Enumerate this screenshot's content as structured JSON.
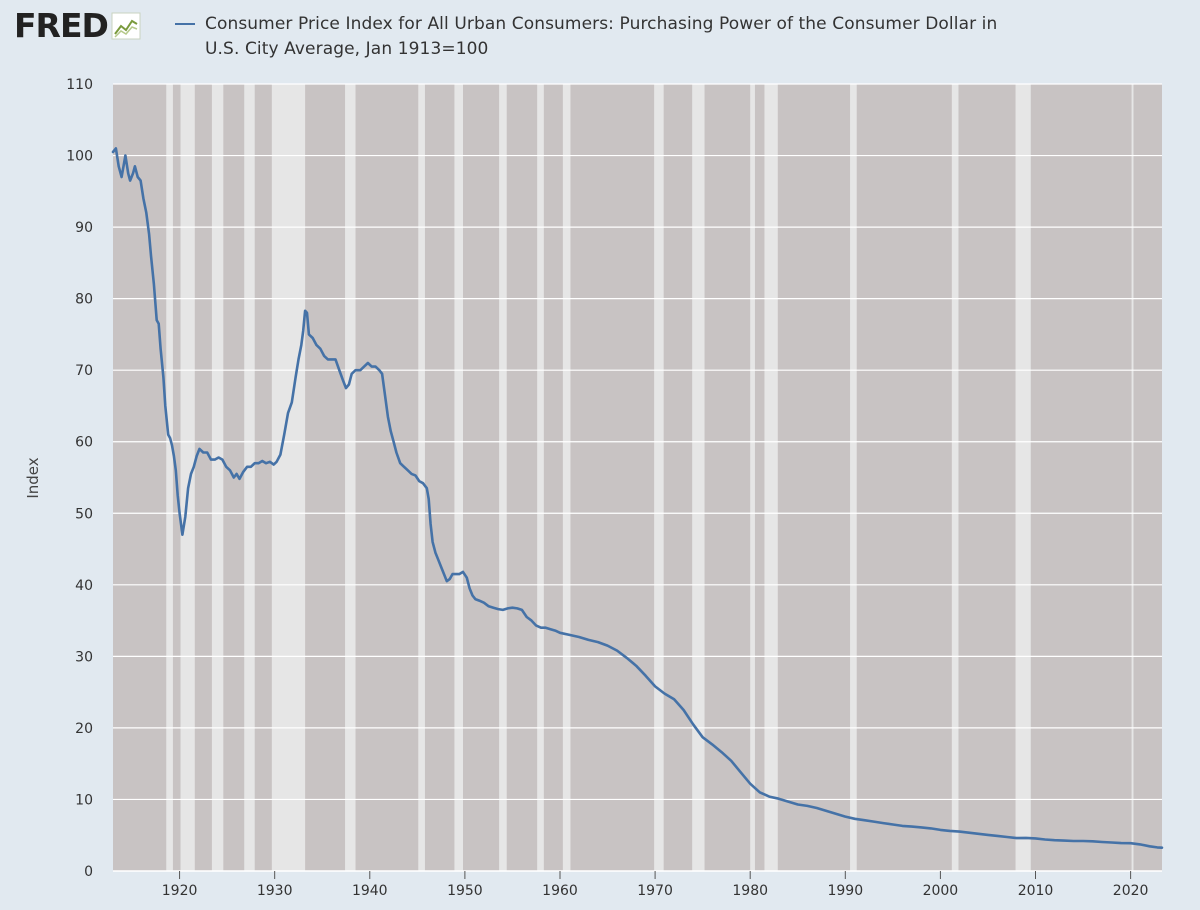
{
  "header": {
    "logo_text": "FRED",
    "logo_icon": "line-chart-icon",
    "legend_label": "Consumer Price Index for All Urban Consumers: Purchasing Power of the Consumer Dollar in U.S. City Average, Jan 1913=100"
  },
  "colors": {
    "background": "#e1e9f0",
    "plot_background": "#c8c3c3",
    "recession_band": "#e6e6e6",
    "series_line": "#4572a7",
    "gridline": "#ffffff"
  },
  "chart_data": {
    "type": "line",
    "title": "",
    "xlabel": "",
    "ylabel": "Index",
    "xlim": [
      1913.0,
      2023.3
    ],
    "ylim": [
      0,
      110
    ],
    "xticks": [
      1920,
      1930,
      1940,
      1950,
      1960,
      1970,
      1980,
      1990,
      2000,
      2010,
      2020
    ],
    "yticks": [
      0,
      10,
      20,
      30,
      40,
      50,
      60,
      70,
      80,
      90,
      100,
      110
    ],
    "grid": "horizontal",
    "legend_position": "top",
    "recession_shading": true,
    "unshaded_periods": [
      [
        1918.6,
        1919.3
      ],
      [
        1920.1,
        1921.6
      ],
      [
        1923.4,
        1924.6
      ],
      [
        1926.8,
        1927.9
      ],
      [
        1929.7,
        1933.2
      ],
      [
        1937.4,
        1938.5
      ],
      [
        1945.1,
        1945.8
      ],
      [
        1948.9,
        1949.8
      ],
      [
        1953.6,
        1954.4
      ],
      [
        1957.6,
        1958.3
      ],
      [
        1960.3,
        1961.1
      ],
      [
        1969.9,
        1970.9
      ],
      [
        1973.9,
        1975.2
      ],
      [
        1980.0,
        1980.5
      ],
      [
        1981.5,
        1982.9
      ],
      [
        1990.5,
        1991.2
      ],
      [
        2001.2,
        2001.9
      ],
      [
        2007.9,
        2009.5
      ],
      [
        2020.1,
        2020.3
      ]
    ],
    "series": [
      {
        "values": [
          [
            1913.0,
            100.5
          ],
          [
            1913.3,
            101.0
          ],
          [
            1913.6,
            98.5
          ],
          [
            1913.9,
            97.0
          ],
          [
            1914.1,
            98.5
          ],
          [
            1914.3,
            100.0
          ],
          [
            1914.6,
            97.5
          ],
          [
            1914.8,
            96.5
          ],
          [
            1915.1,
            97.5
          ],
          [
            1915.3,
            98.5
          ],
          [
            1915.6,
            97.0
          ],
          [
            1915.9,
            96.5
          ],
          [
            1916.2,
            94.0
          ],
          [
            1916.5,
            92.0
          ],
          [
            1916.8,
            89.0
          ],
          [
            1917.0,
            86.0
          ],
          [
            1917.3,
            82.0
          ],
          [
            1917.6,
            77.0
          ],
          [
            1917.8,
            76.5
          ],
          [
            1918.0,
            73.0
          ],
          [
            1918.3,
            69.0
          ],
          [
            1918.5,
            65.0
          ],
          [
            1918.8,
            61.0
          ],
          [
            1919.0,
            60.5
          ],
          [
            1919.2,
            59.5
          ],
          [
            1919.4,
            58.0
          ],
          [
            1919.6,
            56.0
          ],
          [
            1919.8,
            52.5
          ],
          [
            1920.0,
            50.0
          ],
          [
            1920.3,
            47.0
          ],
          [
            1920.6,
            49.5
          ],
          [
            1920.9,
            53.5
          ],
          [
            1921.2,
            55.5
          ],
          [
            1921.5,
            56.5
          ],
          [
            1921.8,
            58.0
          ],
          [
            1922.1,
            59.0
          ],
          [
            1922.5,
            58.5
          ],
          [
            1922.9,
            58.5
          ],
          [
            1923.3,
            57.5
          ],
          [
            1923.7,
            57.5
          ],
          [
            1924.1,
            57.8
          ],
          [
            1924.5,
            57.5
          ],
          [
            1924.9,
            56.5
          ],
          [
            1925.3,
            56.0
          ],
          [
            1925.7,
            55.0
          ],
          [
            1926.0,
            55.5
          ],
          [
            1926.3,
            54.8
          ],
          [
            1926.7,
            55.8
          ],
          [
            1927.1,
            56.5
          ],
          [
            1927.5,
            56.5
          ],
          [
            1927.9,
            57.0
          ],
          [
            1928.3,
            57.0
          ],
          [
            1928.7,
            57.3
          ],
          [
            1929.1,
            57.0
          ],
          [
            1929.5,
            57.2
          ],
          [
            1929.9,
            56.8
          ],
          [
            1930.2,
            57.2
          ],
          [
            1930.6,
            58.2
          ],
          [
            1931.0,
            61.0
          ],
          [
            1931.4,
            64.0
          ],
          [
            1931.8,
            65.5
          ],
          [
            1932.2,
            69.0
          ],
          [
            1932.5,
            71.5
          ],
          [
            1932.8,
            73.5
          ],
          [
            1933.0,
            75.5
          ],
          [
            1933.2,
            78.3
          ],
          [
            1933.4,
            78.0
          ],
          [
            1933.6,
            75.0
          ],
          [
            1934.0,
            74.5
          ],
          [
            1934.4,
            73.5
          ],
          [
            1934.8,
            73.0
          ],
          [
            1935.2,
            72.0
          ],
          [
            1935.6,
            71.5
          ],
          [
            1936.0,
            71.5
          ],
          [
            1936.4,
            71.5
          ],
          [
            1936.8,
            70.0
          ],
          [
            1937.2,
            68.5
          ],
          [
            1937.5,
            67.5
          ],
          [
            1937.8,
            68.0
          ],
          [
            1938.1,
            69.5
          ],
          [
            1938.5,
            70.0
          ],
          [
            1939.0,
            70.0
          ],
          [
            1939.4,
            70.5
          ],
          [
            1939.8,
            71.0
          ],
          [
            1940.2,
            70.5
          ],
          [
            1940.6,
            70.5
          ],
          [
            1941.0,
            70.0
          ],
          [
            1941.3,
            69.5
          ],
          [
            1941.6,
            66.5
          ],
          [
            1941.9,
            63.5
          ],
          [
            1942.2,
            61.5
          ],
          [
            1942.5,
            60.0
          ],
          [
            1942.8,
            58.5
          ],
          [
            1943.2,
            57.0
          ],
          [
            1943.6,
            56.5
          ],
          [
            1944.0,
            56.0
          ],
          [
            1944.4,
            55.5
          ],
          [
            1944.8,
            55.3
          ],
          [
            1945.2,
            54.5
          ],
          [
            1945.6,
            54.2
          ],
          [
            1946.0,
            53.5
          ],
          [
            1946.2,
            52.0
          ],
          [
            1946.4,
            48.5
          ],
          [
            1946.6,
            46.0
          ],
          [
            1946.9,
            44.5
          ],
          [
            1947.2,
            43.5
          ],
          [
            1947.5,
            42.5
          ],
          [
            1947.8,
            41.5
          ],
          [
            1948.1,
            40.5
          ],
          [
            1948.4,
            40.8
          ],
          [
            1948.7,
            41.5
          ],
          [
            1949.0,
            41.5
          ],
          [
            1949.4,
            41.5
          ],
          [
            1949.8,
            41.8
          ],
          [
            1950.2,
            41.0
          ],
          [
            1950.5,
            39.5
          ],
          [
            1950.8,
            38.5
          ],
          [
            1951.1,
            38.0
          ],
          [
            1951.5,
            37.8
          ],
          [
            1952.0,
            37.5
          ],
          [
            1952.5,
            37.0
          ],
          [
            1953.0,
            36.8
          ],
          [
            1953.5,
            36.6
          ],
          [
            1954.0,
            36.5
          ],
          [
            1954.5,
            36.7
          ],
          [
            1955.0,
            36.8
          ],
          [
            1955.5,
            36.7
          ],
          [
            1956.0,
            36.5
          ],
          [
            1956.5,
            35.5
          ],
          [
            1957.0,
            35.0
          ],
          [
            1957.5,
            34.3
          ],
          [
            1958.0,
            34.0
          ],
          [
            1958.5,
            34.0
          ],
          [
            1959.0,
            33.8
          ],
          [
            1959.5,
            33.6
          ],
          [
            1960.0,
            33.3
          ],
          [
            1961.0,
            33.0
          ],
          [
            1962.0,
            32.7
          ],
          [
            1963.0,
            32.3
          ],
          [
            1964.0,
            32.0
          ],
          [
            1965.0,
            31.5
          ],
          [
            1966.0,
            30.8
          ],
          [
            1967.0,
            29.8
          ],
          [
            1968.0,
            28.7
          ],
          [
            1969.0,
            27.3
          ],
          [
            1970.0,
            25.8
          ],
          [
            1971.0,
            24.8
          ],
          [
            1972.0,
            24.0
          ],
          [
            1973.0,
            22.5
          ],
          [
            1974.0,
            20.5
          ],
          [
            1975.0,
            18.7
          ],
          [
            1976.0,
            17.7
          ],
          [
            1977.0,
            16.6
          ],
          [
            1978.0,
            15.4
          ],
          [
            1979.0,
            13.8
          ],
          [
            1980.0,
            12.2
          ],
          [
            1981.0,
            11.0
          ],
          [
            1982.0,
            10.4
          ],
          [
            1983.0,
            10.1
          ],
          [
            1984.0,
            9.7
          ],
          [
            1985.0,
            9.3
          ],
          [
            1986.0,
            9.1
          ],
          [
            1987.0,
            8.8
          ],
          [
            1988.0,
            8.4
          ],
          [
            1989.0,
            8.0
          ],
          [
            1990.0,
            7.6
          ],
          [
            1991.0,
            7.3
          ],
          [
            1992.0,
            7.1
          ],
          [
            1993.0,
            6.9
          ],
          [
            1994.0,
            6.7
          ],
          [
            1995.0,
            6.5
          ],
          [
            1996.0,
            6.3
          ],
          [
            1997.0,
            6.2
          ],
          [
            1998.0,
            6.1
          ],
          [
            1999.0,
            5.95
          ],
          [
            2000.0,
            5.75
          ],
          [
            2001.0,
            5.6
          ],
          [
            2002.0,
            5.5
          ],
          [
            2003.0,
            5.35
          ],
          [
            2004.0,
            5.2
          ],
          [
            2005.0,
            5.05
          ],
          [
            2006.0,
            4.9
          ],
          [
            2007.0,
            4.75
          ],
          [
            2008.0,
            4.6
          ],
          [
            2009.0,
            4.62
          ],
          [
            2010.0,
            4.55
          ],
          [
            2011.0,
            4.4
          ],
          [
            2012.0,
            4.3
          ],
          [
            2013.0,
            4.25
          ],
          [
            2014.0,
            4.2
          ],
          [
            2015.0,
            4.2
          ],
          [
            2016.0,
            4.15
          ],
          [
            2017.0,
            4.05
          ],
          [
            2018.0,
            3.98
          ],
          [
            2019.0,
            3.9
          ],
          [
            2020.0,
            3.88
          ],
          [
            2021.0,
            3.72
          ],
          [
            2022.0,
            3.45
          ],
          [
            2022.8,
            3.3
          ],
          [
            2023.3,
            3.25
          ]
        ]
      }
    ]
  }
}
